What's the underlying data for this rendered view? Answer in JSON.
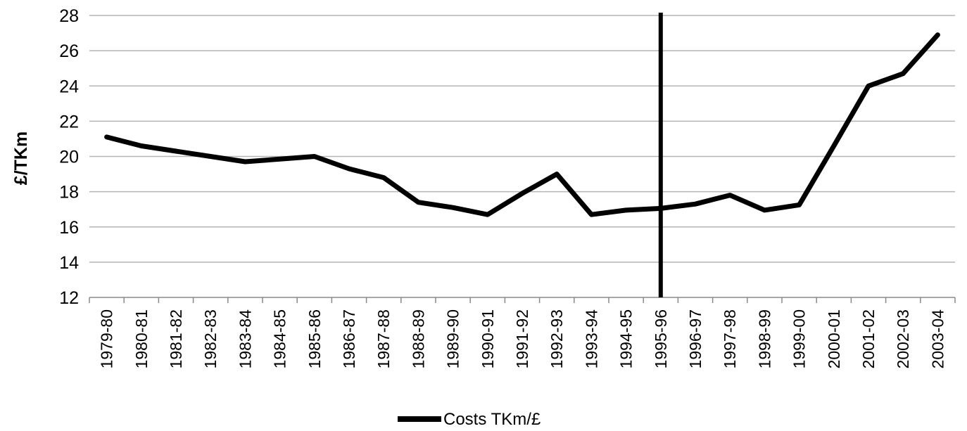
{
  "chart_data": {
    "type": "line",
    "title": "",
    "xlabel": "",
    "ylabel": "£/TKm",
    "ylim": [
      12,
      28
    ],
    "yticks": [
      12,
      14,
      16,
      18,
      20,
      22,
      24,
      26,
      28
    ],
    "grid": true,
    "legend_position": "bottom",
    "categories": [
      "1979-80",
      "1980-81",
      "1981-82",
      "1982-83",
      "1983-84",
      "1984-85",
      "1985-86",
      "1986-87",
      "1987-88",
      "1988-89",
      "1989-90",
      "1990-91",
      "1991-92",
      "1992-93",
      "1993-94",
      "1994-95",
      "1995-96",
      "1996-97",
      "1997-98",
      "1998-99",
      "1999-00",
      "2000-01",
      "2001-02",
      "2002-03",
      "2003-04"
    ],
    "series": [
      {
        "name": "Costs TKm/£",
        "color": "#000000",
        "values": [
          21.1,
          20.6,
          20.3,
          20.0,
          19.7,
          19.85,
          20.0,
          19.3,
          18.8,
          17.4,
          17.1,
          16.7,
          17.9,
          19.0,
          16.7,
          16.95,
          17.05,
          17.3,
          17.8,
          16.95,
          17.25,
          20.6,
          24.0,
          24.7,
          26.9
        ]
      }
    ],
    "reference_line": {
      "category": "1995-96",
      "color": "#000000"
    }
  }
}
